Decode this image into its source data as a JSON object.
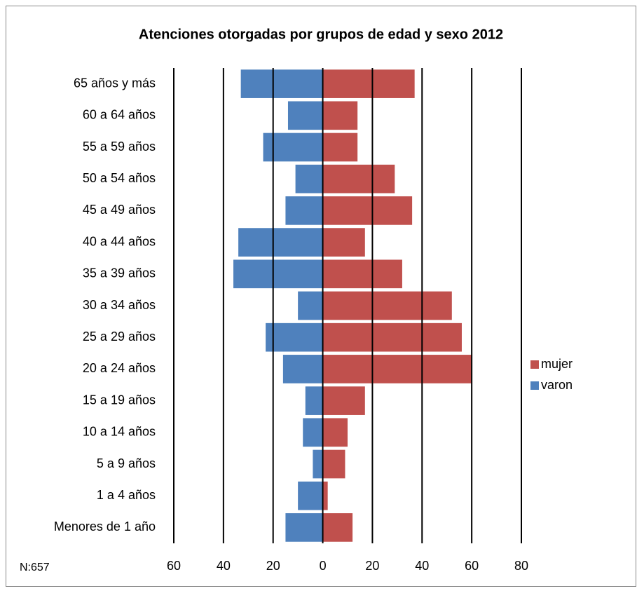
{
  "chart_data": {
    "type": "bar",
    "orientation": "horizontal",
    "title": "Atenciones otorgadas por grupos de edad y sexo   2012",
    "note": "N:657",
    "categories": [
      "65 años y más",
      "60 a 64 años",
      "55 a 59 años",
      "50 a 54 años",
      "45 a 49 años",
      "40 a 44 años",
      "35 a 39 años",
      "30 a 34 años",
      "25 a 29 años",
      "20 a 24 años",
      "15 a 19 años",
      "10 a 14 años",
      "5 a 9 años",
      "1 a 4 años",
      "Menores de 1 año"
    ],
    "series": [
      {
        "name": "varon",
        "color": "#4f81bd",
        "values": [
          -33,
          -14,
          -24,
          -11,
          -15,
          -34,
          -36,
          -10,
          -23,
          -16,
          -7,
          -8,
          -4,
          -10,
          -15
        ]
      },
      {
        "name": "mujer",
        "color": "#c0504d",
        "values": [
          37,
          14,
          14,
          29,
          36,
          17,
          32,
          52,
          56,
          60,
          17,
          10,
          9,
          2,
          12
        ]
      }
    ],
    "xlim": [
      -60,
      80
    ],
    "xticks": [
      {
        "value": -60,
        "label": "60"
      },
      {
        "value": -40,
        "label": "40"
      },
      {
        "value": -20,
        "label": "20"
      },
      0,
      20,
      40,
      60,
      80
    ],
    "grid": true,
    "legend": "right"
  }
}
